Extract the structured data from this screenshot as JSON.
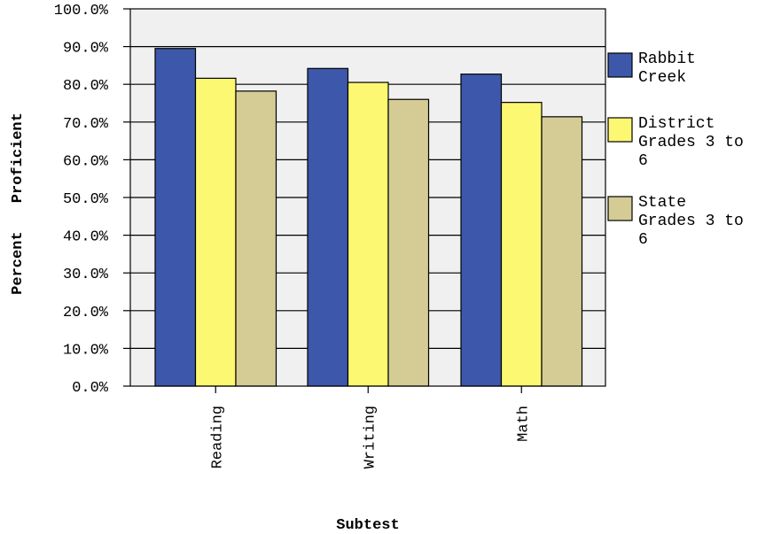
{
  "chart_data": {
    "type": "bar",
    "categories": [
      "Reading",
      "Writing",
      "Math"
    ],
    "series": [
      {
        "name": "Rabbit Creek",
        "values": [
          89.5,
          84.2,
          82.7
        ],
        "color": "#3d58aa"
      },
      {
        "name": "District Grades 3 to 6",
        "values": [
          81.6,
          80.5,
          75.2
        ],
        "color": "#fdf871"
      },
      {
        "name": "State Grades 3 to 6",
        "values": [
          78.2,
          76.0,
          71.4
        ],
        "color": "#d4cc94"
      }
    ],
    "xlabel": "Subtest",
    "ylabel": "Percent Proficient",
    "ylim": [
      0,
      100
    ],
    "yticks": [
      "0.0%",
      "10.0%",
      "20.0%",
      "30.0%",
      "40.0%",
      "50.0%",
      "60.0%",
      "70.0%",
      "80.0%",
      "90.0%",
      "100.0%"
    ],
    "grid": true,
    "legend": "right",
    "plot_background": "#f0f0f0"
  },
  "legend_lines": [
    [
      "Rabbit",
      "Creek"
    ],
    [
      "District",
      "Grades 3 to",
      "6"
    ],
    [
      "State",
      "Grades 3 to",
      "6"
    ]
  ]
}
